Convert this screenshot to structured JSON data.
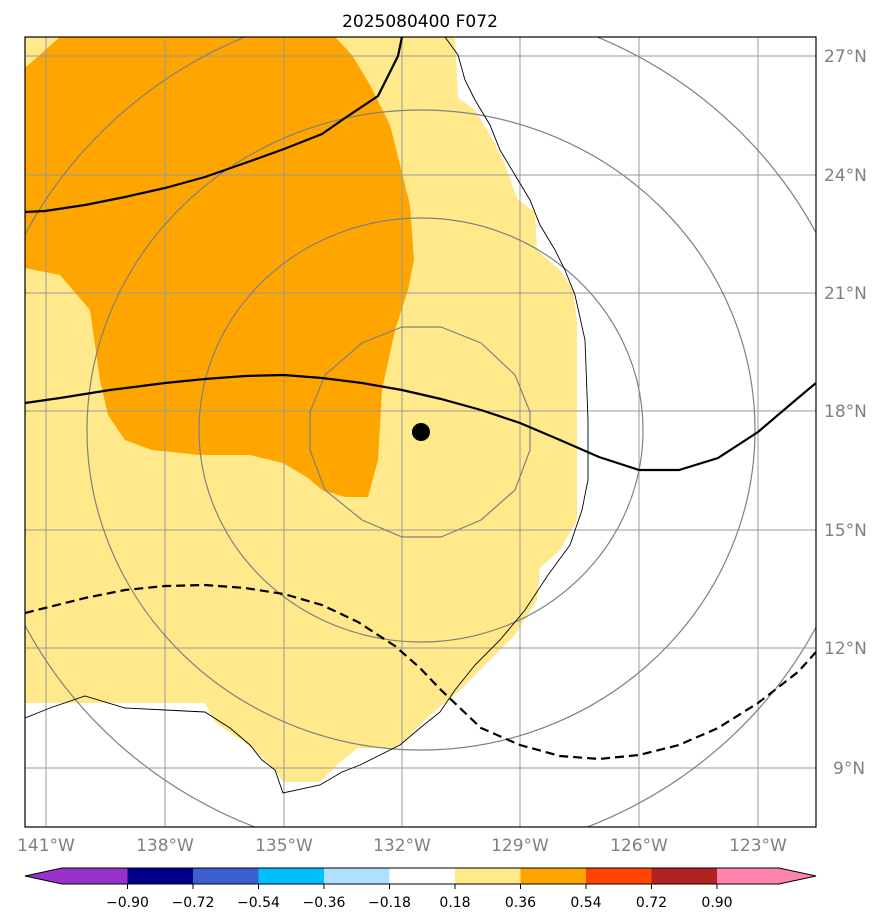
{
  "title": "2025080400 F072",
  "map": {
    "lon_labels": [
      "141°W",
      "138°W",
      "135°W",
      "132°W",
      "129°W",
      "126°W",
      "123°W"
    ],
    "lat_labels": [
      "27°N",
      "24°N",
      "21°N",
      "18°N",
      "15°N",
      "12°N",
      "9°N"
    ],
    "storm_center": {
      "lon": -131.5,
      "lat": 17.5
    },
    "colors": {
      "fill_036": "#ffe98a",
      "fill_054": "#ffa500",
      "gridline": "#999999",
      "rings": "#808080",
      "coast": "#000000"
    }
  },
  "colorbar": {
    "ticks": [
      "−0.90",
      "−0.72",
      "−0.54",
      "−0.36",
      "−0.18",
      "0.18",
      "0.36",
      "0.54",
      "0.72",
      "0.90"
    ],
    "colors": [
      "#9932cc",
      "#00008b",
      "#3b5fcd",
      "#00bfff",
      "#b0e0ff",
      "#ffffff",
      "#ffe98a",
      "#ffa500",
      "#ff4500",
      "#b22222",
      "#ff85b0"
    ]
  }
}
